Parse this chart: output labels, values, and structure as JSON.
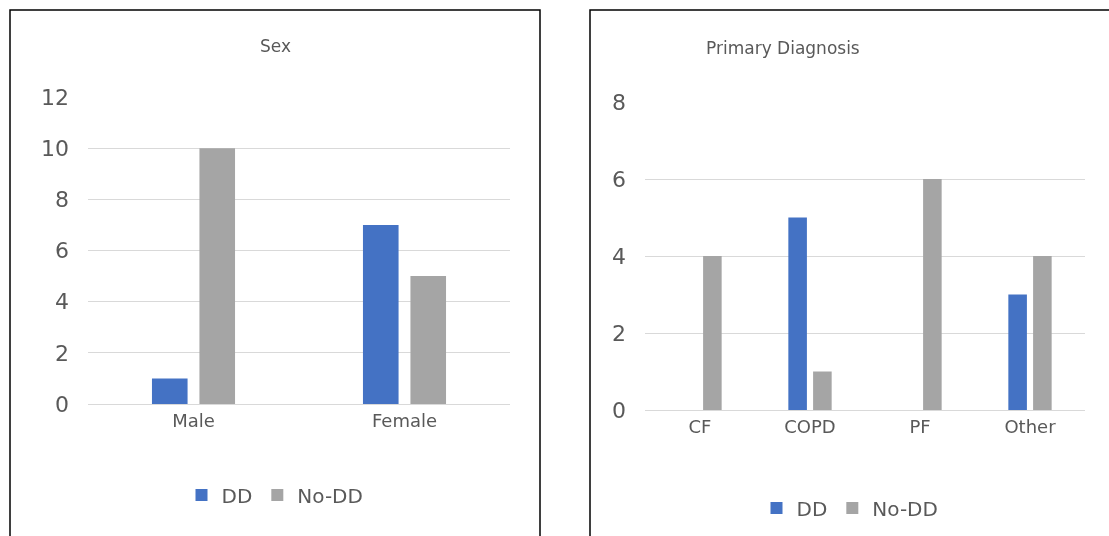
{
  "chart_data": [
    {
      "type": "bar",
      "title": "Sex",
      "categories": [
        "Male",
        "Female"
      ],
      "series": [
        {
          "name": "DD",
          "color": "#4472c4",
          "values": [
            1,
            7
          ]
        },
        {
          "name": "No-DD",
          "color": "#a5a5a5",
          "values": [
            10,
            5
          ]
        }
      ],
      "ylim": [
        0,
        12
      ],
      "yticks": [
        0,
        2,
        4,
        6,
        8,
        10,
        12
      ],
      "grid": "y",
      "legend": "bottom"
    },
    {
      "type": "bar",
      "title": "Primary Diagnosis",
      "categories": [
        "CF",
        "COPD",
        "PF",
        "Other"
      ],
      "series": [
        {
          "name": "DD",
          "color": "#4472c4",
          "values": [
            0,
            5,
            0,
            3
          ]
        },
        {
          "name": "No-DD",
          "color": "#a5a5a5",
          "values": [
            4,
            1,
            6,
            4
          ]
        }
      ],
      "ylim": [
        0,
        8
      ],
      "yticks": [
        0,
        2,
        4,
        6,
        8
      ],
      "grid": "y",
      "legend": "bottom"
    }
  ]
}
